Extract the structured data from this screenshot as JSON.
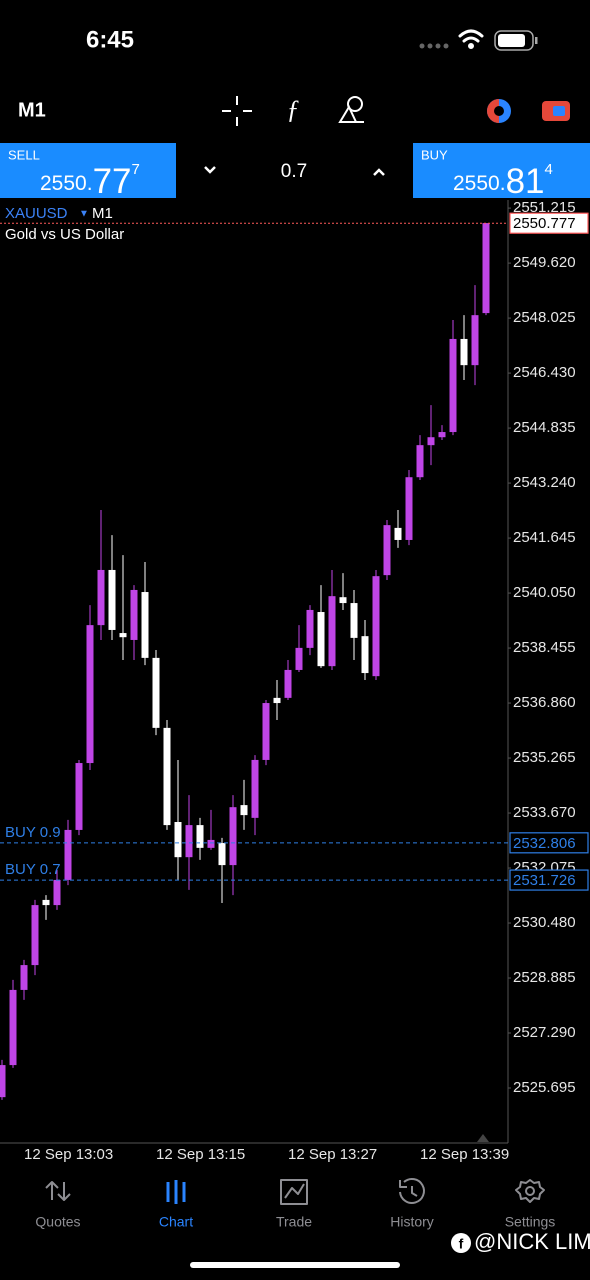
{
  "status_bar": {
    "time": "6:45"
  },
  "toolbar": {
    "timeframe": "M1"
  },
  "trade_panel": {
    "sell": {
      "label": "SELL",
      "price_prefix": "2550.",
      "price_big": "77",
      "price_small": "7"
    },
    "volume": "0.7",
    "buy": {
      "label": "BUY",
      "price_prefix": "2550.",
      "price_big": "81",
      "price_small": "4"
    }
  },
  "chart_data": {
    "type": "candlestick",
    "symbol": "XAUUSD",
    "timeframe": "M1",
    "subtitle": "Gold vs US Dollar",
    "categories": [
      null,
      null,
      "12 Sep 13:03",
      null,
      null,
      null,
      null,
      null,
      null,
      null,
      null,
      null,
      null,
      null,
      "12 Sep 13:15",
      null,
      null,
      null,
      null,
      null,
      null,
      null,
      null,
      null,
      null,
      null,
      "12 Sep 13:27",
      null,
      null,
      null,
      null,
      null,
      null,
      null,
      null,
      null,
      null,
      null,
      "12 Sep 13:39",
      null,
      null,
      null,
      null,
      null,
      null
    ],
    "open": [
      2525.43,
      2526.36,
      2528.54,
      2529.26,
      2531.15,
      2531.0,
      2531.73,
      2533.18,
      2535.12,
      2539.12,
      2540.72,
      2538.89,
      2538.69,
      2540.08,
      2538.17,
      2536.14,
      2533.41,
      2532.39,
      2533.32,
      2532.66,
      2532.8,
      2532.16,
      2533.9,
      2533.53,
      2535.21,
      2537.01,
      2537.01,
      2537.82,
      2538.46,
      2539.5,
      2537.93,
      2539.93,
      2539.76,
      2538.8,
      2537.64,
      2540.57,
      2541.94,
      2541.59,
      2543.41,
      2544.34,
      2544.57,
      2544.72,
      2547.42,
      2546.66,
      2548.17
    ],
    "high": [
      2526.51,
      2528.83,
      2529.41,
      2531.15,
      2531.29,
      2532.02,
      2533.47,
      2535.21,
      2539.7,
      2542.46,
      2541.73,
      2541.15,
      2540.28,
      2540.95,
      2538.4,
      2536.37,
      2535.21,
      2534.19,
      2533.53,
      2533.76,
      2532.95,
      2534.19,
      2534.63,
      2535.35,
      2536.95,
      2537.53,
      2538.11,
      2539.12,
      2539.7,
      2540.28,
      2540.72,
      2540.63,
      2540.14,
      2539.27,
      2540.72,
      2542.17,
      2542.46,
      2543.62,
      2544.63,
      2545.5,
      2544.92,
      2547.97,
      2548.11,
      2548.98,
      2550.78
    ],
    "low": [
      2525.35,
      2526.28,
      2528.25,
      2528.97,
      2530.57,
      2530.86,
      2531.58,
      2533.03,
      2534.92,
      2538.69,
      2538.69,
      2538.11,
      2538.11,
      2537.96,
      2535.93,
      2533.18,
      2531.73,
      2531.44,
      2532.31,
      2532.6,
      2531.06,
      2531.29,
      2533.18,
      2533.03,
      2535.06,
      2536.37,
      2536.95,
      2537.76,
      2538.25,
      2537.88,
      2537.82,
      2539.56,
      2538.11,
      2537.53,
      2537.53,
      2540.43,
      2541.36,
      2541.44,
      2543.33,
      2543.76,
      2544.49,
      2544.63,
      2546.23,
      2546.08,
      2548.11
    ],
    "close": [
      2526.36,
      2528.54,
      2529.26,
      2531.0,
      2531.0,
      2531.73,
      2533.18,
      2535.12,
      2539.12,
      2540.72,
      2538.98,
      2538.77,
      2540.14,
      2538.17,
      2536.14,
      2533.32,
      2532.39,
      2533.32,
      2532.66,
      2532.89,
      2532.16,
      2533.84,
      2533.61,
      2535.21,
      2536.86,
      2536.86,
      2537.82,
      2538.46,
      2539.56,
      2537.93,
      2539.96,
      2539.76,
      2538.75,
      2537.73,
      2540.54,
      2542.02,
      2541.59,
      2543.41,
      2544.34,
      2544.57,
      2544.72,
      2547.42,
      2546.66,
      2548.11,
      2550.78
    ],
    "up_color": "#bf45e6",
    "down_color": "#ffffff",
    "ylim": [
      2524.1,
      2551.45
    ],
    "yticks": [
      2551.215,
      {
        "value": 2549.62,
        "label": "2549.620"
      },
      2548.025,
      {
        "value": 2546.43,
        "label": "2546.430"
      },
      2544.835,
      {
        "value": 2543.24,
        "label": "2543.240"
      },
      2541.645,
      {
        "value": 2540.05,
        "label": "2540.050"
      },
      2538.455,
      {
        "value": 2536.86,
        "label": "2536.860"
      },
      2535.265,
      {
        "value": 2533.67,
        "label": "2533.670"
      },
      2532.075,
      {
        "value": 2530.48,
        "label": "2530.480"
      },
      2528.885,
      {
        "value": 2527.29,
        "label": "2527.290"
      },
      2525.695
    ],
    "price_lines": [
      {
        "value": 2550.777,
        "color": "#ff5a5a"
      },
      {
        "label": "BUY 0.9",
        "value": 2532.806,
        "color": "#2f7fe6"
      },
      {
        "label": "BUY 0.7",
        "value": 2531.726,
        "color": "#2f7fe6"
      }
    ]
  },
  "tab_bar": {
    "tabs": [
      "Quotes",
      "Chart",
      "Trade",
      "History",
      "Settings"
    ],
    "active": 1
  },
  "watermark": "@NICK LIM"
}
